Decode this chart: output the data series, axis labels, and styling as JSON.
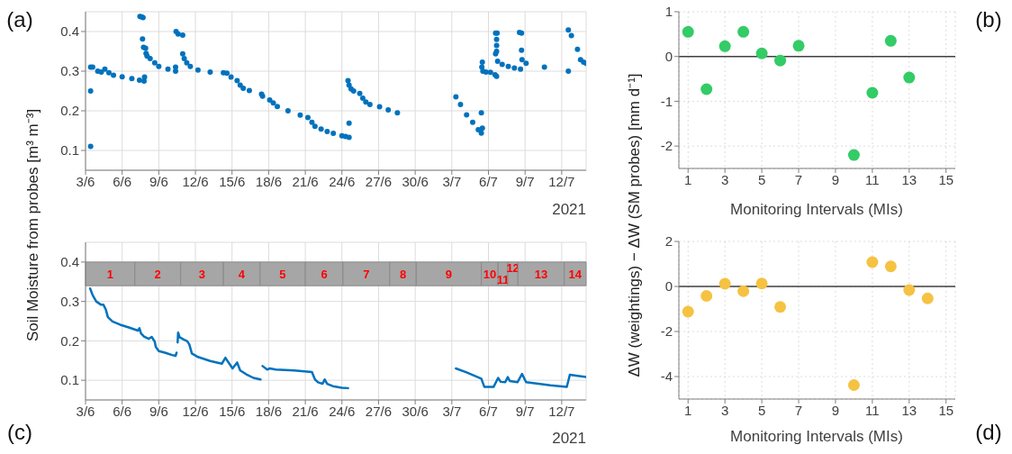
{
  "chart_data": [
    {
      "type": "scatter",
      "ylabel": "Soil Moisture from probes [m³ m⁻³]",
      "xlabel": "2021",
      "annotations": [
        "(a)"
      ],
      "marker": "circle",
      "grid": true,
      "xlim": [
        "2021-06-03",
        "2021-07-14"
      ],
      "xticks": [
        {
          "value": "2021-06-03",
          "label": "3/6"
        },
        {
          "value": "2021-06-06",
          "label": "6/6"
        },
        {
          "value": "2021-06-09",
          "label": "9/6"
        },
        {
          "value": "2021-06-12",
          "label": "12/6"
        },
        {
          "value": "2021-06-15",
          "label": "15/6"
        },
        {
          "value": "2021-06-18",
          "label": "18/6"
        },
        {
          "value": "2021-06-21",
          "label": "21/6"
        },
        {
          "value": "2021-06-24",
          "label": "24/6"
        },
        {
          "value": "2021-06-27",
          "label": "27/6"
        },
        {
          "value": "2021-06-30",
          "label": "30/6"
        },
        {
          "value": "2021-07-03",
          "label": "3/7"
        },
        {
          "value": "2021-07-06",
          "label": "6/7"
        },
        {
          "value": "2021-07-09",
          "label": "9/7"
        },
        {
          "value": "2021-07-12",
          "label": "12/7"
        }
      ],
      "ylim": [
        0.05,
        0.45
      ],
      "yticks": [
        0.1,
        0.2,
        0.3,
        0.4
      ],
      "series": [
        {
          "color": "#0072bd",
          "x": [
            "2021-06-03T10:00",
            "2021-06-03T10:00",
            "2021-06-03T10:00",
            "2021-06-03T14:00",
            "2021-06-04T00:00",
            "2021-06-04T07:00",
            "2021-06-04T14:00",
            "2021-06-04T22:00",
            "2021-06-05T07:00",
            "2021-06-06T00:00",
            "2021-06-06T19:00",
            "2021-06-07T10:00",
            "2021-06-07T19:00",
            "2021-06-07T20:00",
            "2021-06-07T11:00",
            "2021-06-07T14:00",
            "2021-06-07T17:00",
            "2021-06-07T16:00",
            "2021-06-07T18:00",
            "2021-06-07T22:00",
            "2021-06-07T23:00",
            "2021-06-08T01:00",
            "2021-06-08T07:00",
            "2021-06-08T16:00",
            "2021-06-09T00:00",
            "2021-06-09T18:00",
            "2021-06-10T09:00",
            "2021-06-10T09:00",
            "2021-06-10T10:00",
            "2021-06-10T14:00",
            "2021-06-10T23:00",
            "2021-06-10T23:00",
            "2021-06-11T02:00",
            "2021-06-11T07:00",
            "2021-06-11T14:00",
            "2021-06-12T05:00",
            "2021-06-13T05:00",
            "2021-06-14T07:00",
            "2021-06-14T14:00",
            "2021-06-14T22:00",
            "2021-06-15T10:00",
            "2021-06-15T16:00",
            "2021-06-15T22:00",
            "2021-06-16T10:00",
            "2021-06-17T10:00",
            "2021-06-17T12:00",
            "2021-06-18T02:00",
            "2021-06-18T09:00",
            "2021-06-18T17:00",
            "2021-06-19T14:00",
            "2021-06-20T14:00",
            "2021-06-21T05:00",
            "2021-06-21T13:00",
            "2021-06-21T19:00",
            "2021-06-22T07:00",
            "2021-06-22T19:00",
            "2021-06-23T07:00",
            "2021-06-24T00:00",
            "2021-06-24T07:00",
            "2021-06-24T14:00",
            "2021-06-24T14:00",
            "2021-06-24T12:00",
            "2021-06-24T14:00",
            "2021-06-24T18:00",
            "2021-06-24T23:00",
            "2021-06-25T11:00",
            "2021-06-25T17:00",
            "2021-06-25T23:00",
            "2021-06-26T07:00",
            "2021-06-27T02:00",
            "2021-06-27T19:00",
            "2021-06-28T13:00",
            "2021-07-03T08:00",
            "2021-07-03T17:00",
            "2021-07-04T05:00",
            "2021-07-04T17:00",
            "2021-07-05T04:00",
            "2021-07-05T10:00",
            "2021-07-05T12:00",
            "2021-07-05T10:00",
            "2021-07-05T12:00",
            "2021-07-05T11:00",
            "2021-07-05T13:00",
            "2021-07-05T19:00",
            "2021-07-06T04:00",
            "2021-07-06T13:00",
            "2021-07-06T16:00",
            "2021-07-06T14:00",
            "2021-07-06T17:00",
            "2021-07-06T16:00",
            "2021-07-06T16:00",
            "2021-07-06T16:00",
            "2021-07-06T14:00",
            "2021-07-06T18:00",
            "2021-07-07T03:00",
            "2021-07-07T15:00",
            "2021-07-08T03:00",
            "2021-07-08T15:00",
            "2021-07-08T13:00",
            "2021-07-08T17:00",
            "2021-07-08T17:00",
            "2021-07-08T18:00",
            "2021-07-09T02:00",
            "2021-07-10T14:00",
            "2021-07-12T13:00",
            "2021-07-12T13:00",
            "2021-07-12T19:00",
            "2021-07-13T07:00",
            "2021-07-13T13:00",
            "2021-07-13T19:00",
            "2021-07-14T00:00"
          ],
          "values": [
            0.31,
            0.25,
            0.11,
            0.31,
            0.3,
            0.298,
            0.305,
            0.296,
            0.29,
            0.286,
            0.281,
            0.277,
            0.275,
            0.285,
            0.438,
            0.437,
            0.435,
            0.381,
            0.36,
            0.358,
            0.345,
            0.338,
            0.332,
            0.321,
            0.312,
            0.305,
            0.3,
            0.31,
            0.4,
            0.394,
            0.391,
            0.344,
            0.332,
            0.321,
            0.312,
            0.303,
            0.298,
            0.296,
            0.295,
            0.285,
            0.276,
            0.265,
            0.257,
            0.251,
            0.242,
            0.237,
            0.227,
            0.22,
            0.211,
            0.2,
            0.189,
            0.183,
            0.171,
            0.161,
            0.154,
            0.148,
            0.143,
            0.137,
            0.135,
            0.133,
            0.169,
            0.276,
            0.265,
            0.255,
            0.25,
            0.244,
            0.232,
            0.222,
            0.216,
            0.21,
            0.202,
            0.195,
            0.235,
            0.216,
            0.19,
            0.171,
            0.152,
            0.144,
            0.156,
            0.195,
            0.323,
            0.31,
            0.3,
            0.298,
            0.297,
            0.291,
            0.287,
            0.396,
            0.396,
            0.38,
            0.365,
            0.35,
            0.344,
            0.325,
            0.317,
            0.312,
            0.308,
            0.305,
            0.398,
            0.396,
            0.353,
            0.329,
            0.32,
            0.31,
            0.3,
            0.404,
            0.39,
            0.355,
            0.329,
            0.323,
            0.32
          ]
        }
      ]
    },
    {
      "type": "scatter",
      "ylabel": "ΔW (weightings) − ΔW (SM probes) [mm d⁻¹]",
      "xlabel": "Monitoring Intervals (MIs)",
      "annotations": [
        "(b)"
      ],
      "marker": "circle",
      "grid": true,
      "xlim": [
        0.5,
        15.5
      ],
      "xticks": [
        1,
        3,
        5,
        7,
        9,
        11,
        13,
        15
      ],
      "ylim": [
        -2.5,
        1
      ],
      "yticks": [
        -2,
        -1,
        0,
        1
      ],
      "ref_lines": [
        {
          "axis": "y",
          "value": 0,
          "color": "#404040"
        }
      ],
      "series": [
        {
          "color": "#33cc66",
          "x": [
            1,
            2,
            3,
            4,
            5,
            6,
            7,
            10,
            11,
            12,
            13
          ],
          "values": [
            0.55,
            -0.73,
            0.23,
            0.55,
            0.07,
            -0.09,
            0.24,
            -2.2,
            -0.81,
            0.35,
            -0.47
          ]
        }
      ]
    },
    {
      "type": "line",
      "xlabel": "2021",
      "annotations": [
        "(c)"
      ],
      "grid": true,
      "xlim": [
        "2021-06-03",
        "2021-07-14"
      ],
      "xticks": [
        {
          "value": "2021-06-03",
          "label": "3/6"
        },
        {
          "value": "2021-06-06",
          "label": "6/6"
        },
        {
          "value": "2021-06-09",
          "label": "9/6"
        },
        {
          "value": "2021-06-12",
          "label": "12/6"
        },
        {
          "value": "2021-06-15",
          "label": "15/6"
        },
        {
          "value": "2021-06-18",
          "label": "18/6"
        },
        {
          "value": "2021-06-21",
          "label": "21/6"
        },
        {
          "value": "2021-06-24",
          "label": "24/6"
        },
        {
          "value": "2021-06-27",
          "label": "27/6"
        },
        {
          "value": "2021-06-30",
          "label": "30/6"
        },
        {
          "value": "2021-07-03",
          "label": "3/7"
        },
        {
          "value": "2021-07-06",
          "label": "6/7"
        },
        {
          "value": "2021-07-09",
          "label": "9/7"
        },
        {
          "value": "2021-07-12",
          "label": "12/7"
        }
      ],
      "ylim": [
        0.05,
        0.45
      ],
      "yticks": [
        0.1,
        0.2,
        0.3,
        0.4
      ],
      "bands": [
        {
          "axis": "y",
          "from": 0.34,
          "to": 0.4,
          "color": "#a6a6a6"
        },
        {
          "axis": "x",
          "from": "2021-06-03",
          "to": "2021-06-07T01:00",
          "label": "1",
          "color": "#a6a6a6"
        },
        {
          "axis": "x",
          "from": "2021-06-07T01:00",
          "to": "2021-06-10T19:00",
          "label": "2",
          "color": "#a6a6a6"
        },
        {
          "axis": "x",
          "from": "2021-06-10T19:00",
          "to": "2021-06-14T07:00",
          "label": "3",
          "color": "#a6a6a6"
        },
        {
          "axis": "x",
          "from": "2021-06-14T07:00",
          "to": "2021-06-17T07:00",
          "label": "4",
          "color": "#a6a6a6"
        },
        {
          "axis": "x",
          "from": "2021-06-17T07:00",
          "to": "2021-06-21T00:00",
          "label": "5",
          "color": "#a6a6a6"
        },
        {
          "axis": "x",
          "from": "2021-06-21T00:00",
          "to": "2021-06-24T02:00",
          "label": "6",
          "color": "#a6a6a6"
        },
        {
          "axis": "x",
          "from": "2021-06-24T02:00",
          "to": "2021-06-27T22:00",
          "label": "7",
          "color": "#a6a6a6"
        },
        {
          "axis": "x",
          "from": "2021-06-27T22:00",
          "to": "2021-06-30T02:00",
          "label": "8",
          "color": "#a6a6a6"
        },
        {
          "axis": "x",
          "from": "2021-06-30T02:00",
          "to": "2021-07-05T10:00",
          "label": "9",
          "color": "#a6a6a6"
        },
        {
          "axis": "x",
          "from": "2021-07-05T10:00",
          "to": "2021-07-06T19:00",
          "label": "10",
          "color": "#a6a6a6"
        },
        {
          "axis": "x",
          "from": "2021-07-06T19:00",
          "to": "2021-07-07T14:00",
          "label": "11",
          "color": "#a6a6a6"
        },
        {
          "axis": "x",
          "from": "2021-07-07T14:00",
          "to": "2021-07-08T10:00",
          "label": "12",
          "color": "#a6a6a6"
        },
        {
          "axis": "x",
          "from": "2021-07-08T10:00",
          "to": "2021-07-12T05:00",
          "label": "13",
          "color": "#a6a6a6"
        },
        {
          "axis": "x",
          "from": "2021-07-12T05:00",
          "to": "2021-07-14",
          "label": "14",
          "color": "#a6a6a6"
        }
      ],
      "series": [
        {
          "color": "#0072bd",
          "x": [
            "2021-06-03T09:00",
            "2021-06-03T14:00",
            "2021-06-03T21:00",
            "2021-06-04T06:00",
            "2021-06-04T11:00",
            "2021-06-04T16:00",
            "2021-06-04T20:00",
            "2021-06-05T05:00",
            "2021-06-05T20:00",
            "2021-06-06T13:00",
            "2021-06-07T07:00",
            "2021-06-07T10:00",
            "2021-06-07T13:00",
            "2021-06-07T19:00",
            "2021-06-08T04:00",
            "2021-06-08T10:00",
            "2021-06-08T16:00",
            "2021-06-08T18:00",
            "2021-06-09T00:00",
            "2021-06-09T12:00",
            "2021-06-10T02:00",
            "2021-06-10T09:00",
            "2021-06-10T11:00",
            "2021-06-10T12:00",
            "2021-06-10T13:00",
            "2021-06-10T14:00",
            "2021-06-10T17:00",
            "2021-06-11T00:00",
            "2021-06-11T08:00",
            "2021-06-11T12:00",
            "2021-06-11T17:00",
            "2021-06-12T05:00",
            "2021-06-13T05:00",
            "2021-06-14T04:00",
            "2021-06-14T11:00",
            "2021-06-14T16:00",
            "2021-06-15T01:00",
            "2021-06-15T10:00",
            "2021-06-15T16:00",
            "2021-06-16T04:00",
            "2021-06-16T18:00",
            "2021-06-17T08:00",
            "2021-06-17T10:00",
            "2021-06-17T12:00",
            "2021-06-17T21:00",
            "2021-06-18T02:00",
            "2021-06-18T14:00",
            "2021-06-20T02:00",
            "2021-06-21T13:00",
            "2021-06-21T19:00",
            "2021-06-22T01:00",
            "2021-06-22T10:00",
            "2021-06-22T14:00",
            "2021-06-22T19:00",
            "2021-06-23T06:00",
            "2021-06-24T00:00",
            "2021-06-24T12:00",
            "2021-06-29T00:00",
            "2021-07-03T08:00",
            "2021-07-04T05:00",
            "2021-07-05T10:00",
            "2021-07-05T16:00",
            "2021-07-06T10:00",
            "2021-07-06T19:00",
            "2021-07-07T00:00",
            "2021-07-07T09:00",
            "2021-07-07T14:00",
            "2021-07-07T18:00",
            "2021-07-08T09:00",
            "2021-07-08T18:00",
            "2021-07-09T02:00",
            "2021-07-10T02:00",
            "2021-07-11T02:00",
            "2021-07-12T10:00",
            "2021-07-12T16:00",
            "2021-07-13T07:00",
            "2021-07-14T00:00"
          ],
          "values": [
            0.333,
            0.316,
            0.3,
            0.292,
            0.292,
            0.279,
            0.26,
            0.249,
            0.241,
            0.234,
            0.226,
            0.232,
            0.219,
            0.211,
            0.205,
            0.21,
            0.198,
            0.185,
            0.174,
            0.17,
            0.164,
            0.162,
            0.17,
            null,
            0.196,
            0.221,
            0.209,
            0.204,
            0.199,
            0.191,
            0.168,
            0.159,
            0.149,
            0.142,
            0.157,
            0.147,
            0.13,
            0.145,
            0.125,
            0.115,
            0.106,
            0.102,
            null,
            0.136,
            0.127,
            0.13,
            0.127,
            0.125,
            0.121,
            0.102,
            0.095,
            0.091,
            0.102,
            0.091,
            0.085,
            0.081,
            0.08,
            null,
            0.13,
            0.12,
            0.104,
            0.083,
            0.083,
            0.106,
            0.096,
            0.095,
            0.108,
            0.098,
            0.095,
            0.116,
            0.095,
            0.091,
            0.087,
            0.083,
            0.114,
            0.111,
            0.108
          ]
        }
      ]
    },
    {
      "type": "scatter",
      "xlabel": "Monitoring Intervals (MIs)",
      "annotations": [
        "(d)"
      ],
      "marker": "circle",
      "grid": true,
      "xlim": [
        0.5,
        15.5
      ],
      "xticks": [
        1,
        3,
        5,
        7,
        9,
        11,
        13,
        15
      ],
      "ylim": [
        -5,
        2
      ],
      "yticks": [
        -4,
        -2,
        0,
        2
      ],
      "ref_lines": [
        {
          "axis": "y",
          "value": 0,
          "color": "#404040"
        }
      ],
      "series": [
        {
          "color": "#f5c242",
          "x": [
            1,
            2,
            3,
            4,
            5,
            6,
            10,
            11,
            12,
            13,
            14
          ],
          "values": [
            -1.12,
            -0.42,
            0.12,
            -0.21,
            0.13,
            -0.91,
            -4.38,
            1.08,
            0.89,
            -0.16,
            -0.53
          ]
        }
      ]
    }
  ]
}
